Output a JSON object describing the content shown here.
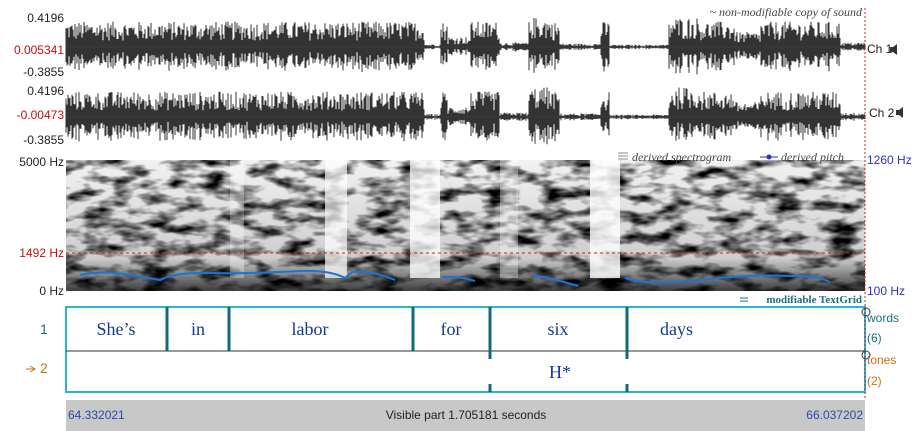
{
  "sound": {
    "title": "~ non-modifiable copy of sound",
    "channels": [
      {
        "name": "Ch 1",
        "max": "0.4196",
        "cursor": "0.005341",
        "min": "-0.3855"
      },
      {
        "name": "Ch 2",
        "max": "0.4196",
        "cursor": "-0.00473",
        "min": "-0.3855"
      }
    ]
  },
  "spectrogram": {
    "top": "5000 Hz",
    "cursor": "1492 Hz",
    "bottom": "0 Hz",
    "legend_spectrogram": "derived spectrogram",
    "legend_pitch": "derived pitch",
    "pitch_top": "1260 Hz",
    "pitch_bottom": "100 Hz"
  },
  "textgrid": {
    "title": "modifiable TextGrid",
    "tiers": [
      {
        "number": "1",
        "name": "words",
        "count": "(6)",
        "intervals": [
          "She’s",
          "in",
          "labor",
          "for",
          "six",
          "days"
        ]
      },
      {
        "number": "2",
        "name": "tones",
        "count": "(2)",
        "points": [
          "H*"
        ]
      }
    ]
  },
  "footer": {
    "start": "64.332021",
    "label": "Visible part 1.705181 seconds",
    "end": "66.037202"
  }
}
